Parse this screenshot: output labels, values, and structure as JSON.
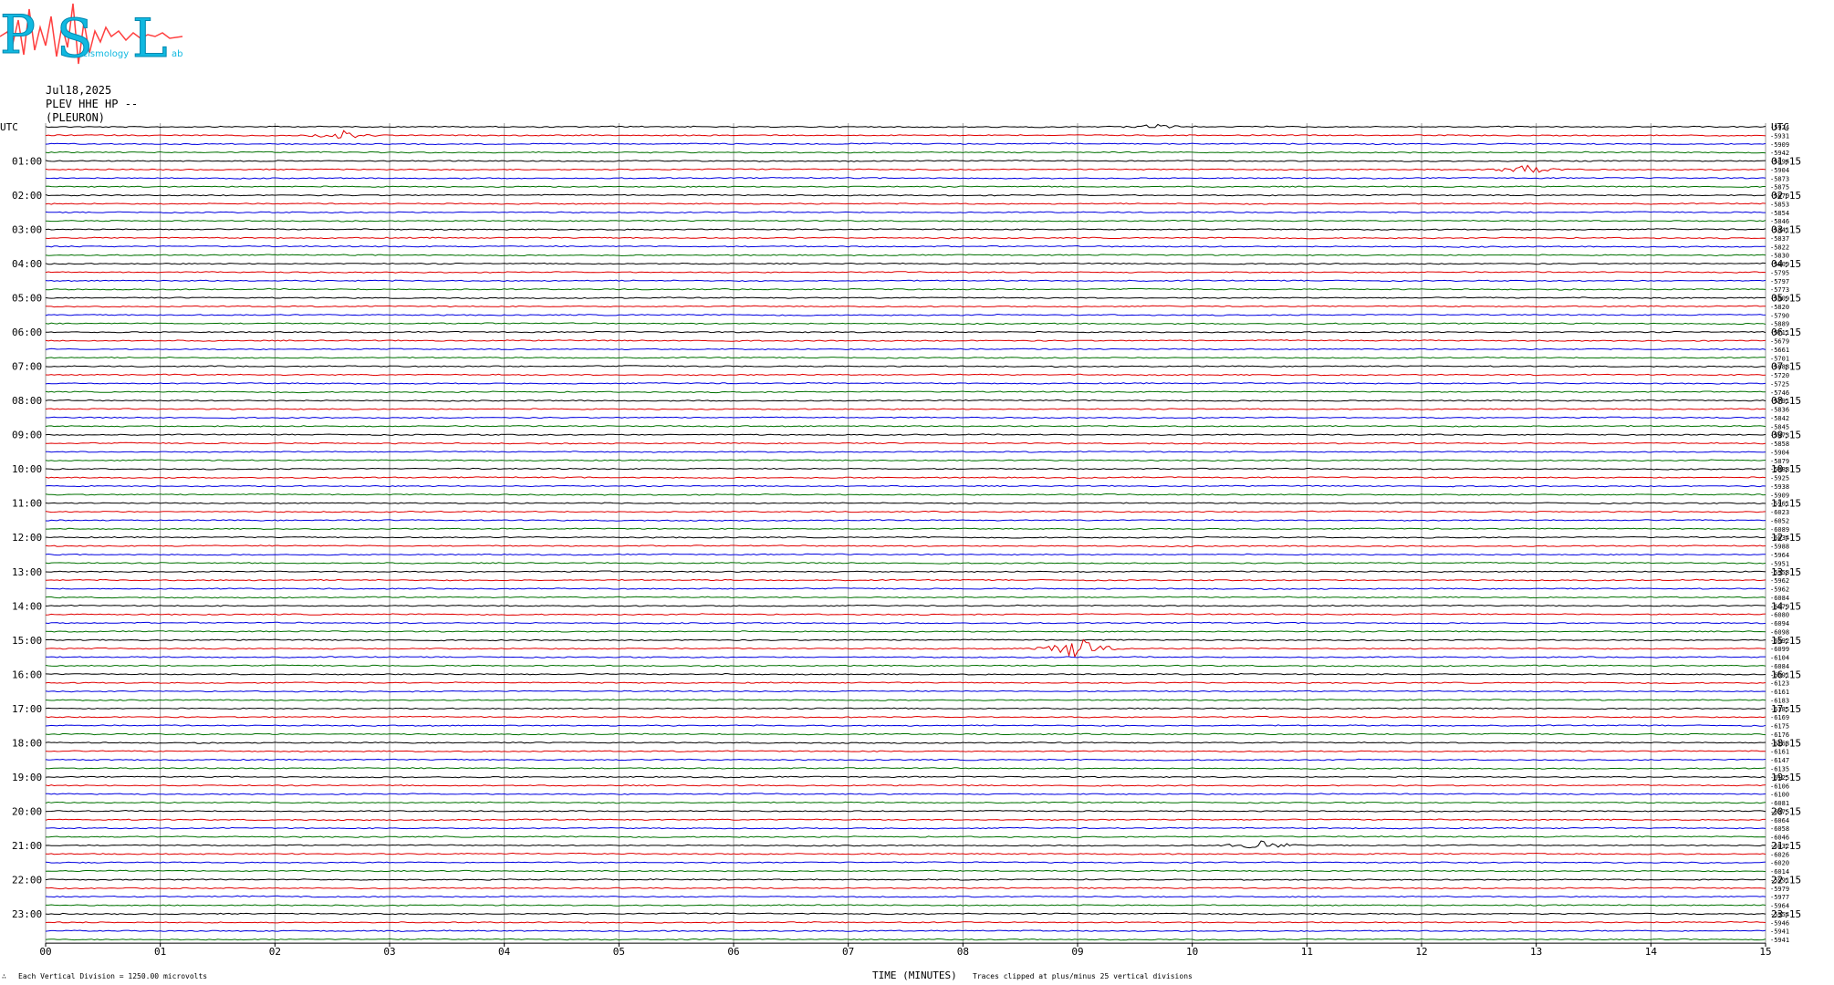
{
  "logo": {
    "text_p": "P",
    "text_s": "S",
    "text_l": "L",
    "text_small": "eismology",
    "text_ab": "ab"
  },
  "header": {
    "date": "Jul18,2025",
    "channel": "PLEV HHE HP --",
    "station": "(PLEURON)"
  },
  "footer": {
    "scale_note": "Each Vertical Division = 1250.00 microvolts",
    "x_title": "TIME (MINUTES)",
    "clip_note": "Traces clipped at plus/minus 25 vertical divisions",
    "corner_mark": "∴"
  },
  "colors": {
    "black": "#000000",
    "red": "#e00000",
    "blue": "#0000e0",
    "green": "#007000",
    "grid": "#9a9a9a"
  },
  "chart_data": {
    "type": "line",
    "title": "",
    "xlabel": "TIME (MINUTES)",
    "xlim": [
      0,
      15
    ],
    "x_ticks": [
      "00",
      "01",
      "02",
      "03",
      "04",
      "05",
      "06",
      "07",
      "08",
      "09",
      "10",
      "11",
      "12",
      "13",
      "14",
      "15"
    ],
    "left_labels": [
      "UTC",
      "01:00",
      "02:00",
      "03:00",
      "04:00",
      "05:00",
      "06:00",
      "07:00",
      "08:00",
      "09:00",
      "10:00",
      "11:00",
      "12:00",
      "13:00",
      "14:00",
      "15:00",
      "16:00",
      "17:00",
      "18:00",
      "19:00",
      "20:00",
      "21:00",
      "22:00",
      "23:00"
    ],
    "right_labels": [
      "UTC",
      "01:15",
      "02:15",
      "03:15",
      "04:15",
      "05:15",
      "06:15",
      "07:15",
      "08:15",
      "09:15",
      "10:15",
      "11:15",
      "12:15",
      "13:15",
      "14:15",
      "15:15",
      "16:15",
      "17:15",
      "18:15",
      "19:15",
      "20:15",
      "21:15",
      "22:15",
      "23:15"
    ],
    "trace_color_cycle": [
      "black",
      "red",
      "blue",
      "green"
    ],
    "trace_count": 96,
    "trace_offsets": [
      -5924,
      -5931,
      -5909,
      -5942,
      -5894,
      -5904,
      -5873,
      -5875,
      -5870,
      -5853,
      -5854,
      -5846,
      -5841,
      -5837,
      -5822,
      -5830,
      -5809,
      -5795,
      -5797,
      -5773,
      -5809,
      -5820,
      -5790,
      -5889,
      -5711,
      -5679,
      -5661,
      -5701,
      -5688,
      -5720,
      -5725,
      -5746,
      -5791,
      -5836,
      -5842,
      -5845,
      -5873,
      -5858,
      -5904,
      -5879,
      -5888,
      -5925,
      -5938,
      -5909,
      -5961,
      -6023,
      -6052,
      -6089,
      -6034,
      -5988,
      -5964,
      -5951,
      -5958,
      -5962,
      -5962,
      -6084,
      -6079,
      -6080,
      -6094,
      -6098,
      -6092,
      -6099,
      -6104,
      -6084,
      -6091,
      -6123,
      -6161,
      -6183,
      -6185,
      -6169,
      -6175,
      -6176,
      -6168,
      -6161,
      -6147,
      -6135,
      -6125,
      -6106,
      -6100,
      -6081,
      -6075,
      -6064,
      -6058,
      -6046,
      -6032,
      -6026,
      -6020,
      -6014,
      -5991,
      -5979,
      -5977,
      -5964,
      -5954,
      -5946,
      -5941,
      -5941
    ],
    "events": [
      {
        "trace": 1,
        "minute": 2.6,
        "amplitude": 5,
        "label": ""
      },
      {
        "trace": 5,
        "minute": 12.9,
        "amplitude": 6,
        "label": ""
      },
      {
        "trace": 61,
        "minute": 9.0,
        "amplitude": 14,
        "label": ""
      },
      {
        "trace": 84,
        "minute": 10.6,
        "amplitude": 5,
        "label": ""
      },
      {
        "trace": 0,
        "minute": 9.7,
        "amplitude": 3,
        "label": ""
      }
    ],
    "grid": true
  }
}
